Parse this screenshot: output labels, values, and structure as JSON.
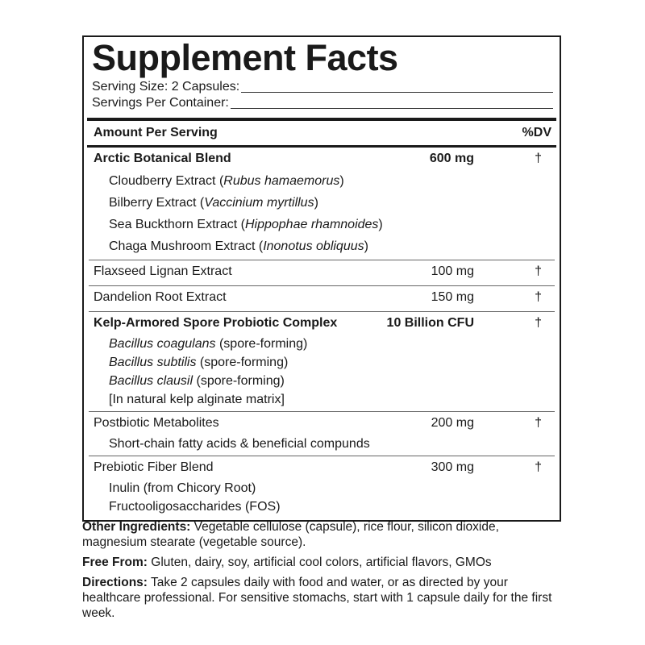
{
  "title": "Supplement Facts",
  "serving_size": "Serving Size: 2 Capsules:",
  "servings_per_container": "Servings Per Container:",
  "header": {
    "amount": "Amount Per Serving",
    "dv": "%DV"
  },
  "rows": [
    {
      "name": "Arctic Botanical Blend",
      "amount": "600 mg",
      "dv": "†",
      "subs": [
        {
          "plain": "Cloudberry Extract (",
          "italic": "Rubus hamaemorus",
          "end": ")"
        },
        {
          "plain": "Bilberry Extract (",
          "italic": "Vaccinium myrtillus",
          "end": ")"
        },
        {
          "plain": "Sea Buckthorn Extract (",
          "italic": "Hippophae rhamnoides",
          "end": ")"
        },
        {
          "plain": "Chaga Mushroom Extract (",
          "italic": "Inonotus obliquus",
          "end": ")"
        }
      ]
    },
    {
      "name": "Flaxseed Lignan Extract",
      "amount": "100 mg",
      "dv": "†"
    },
    {
      "name": "Dandelion Root Extract",
      "amount": "150 mg",
      "dv": "†"
    },
    {
      "name": "Kelp-Armored Spore Probiotic Complex",
      "amount": "10 Billion CFU",
      "dv": "†",
      "subs": [
        {
          "italic": "Bacillus coagulans",
          "end": " (spore-forming)"
        },
        {
          "italic": "Bacillus subtilis",
          "end": " (spore-forming)"
        },
        {
          "italic": "Bacillus clausil",
          "end": " (spore-forming)"
        },
        {
          "plain": "[In natural kelp alginate matrix]"
        }
      ]
    },
    {
      "name": "Postbiotic Metabolites",
      "amount": "200 mg",
      "dv": "†",
      "subs": [
        {
          "plain": "Short-chain fatty acids & beneficial compunds"
        }
      ]
    },
    {
      "name": "Prebiotic Fiber Blend",
      "amount": "300 mg",
      "dv": "†",
      "subs": [
        {
          "plain": "Inulin (from Chicory Root)"
        },
        {
          "plain": "Fructooligosaccharides (FOS)"
        }
      ]
    }
  ],
  "other": {
    "label": "Other Ingredients:",
    "text": " Vegetable cellulose (capsule), rice flour, silicon dioxide, magnesium stearate (vegetable source)."
  },
  "free": {
    "label": "Free From:",
    "text": " Gluten, dairy, soy, artificial cool colors, artificial flavors, GMOs"
  },
  "directions": {
    "label": "Directions:",
    "text": " Take 2 capsules daily with food and water, or as directed by your healthcare professional. For sensitive stomachs, start with 1 capsule daily for the first week."
  }
}
